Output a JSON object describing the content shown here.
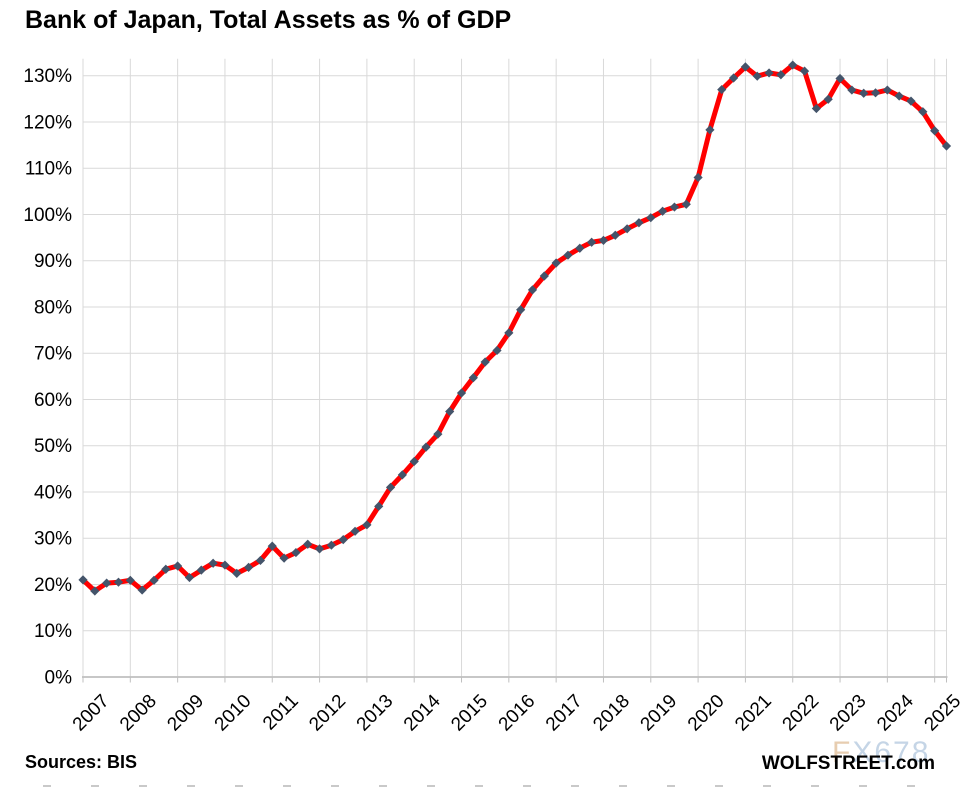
{
  "title": "Bank of Japan, Total Assets as % of GDP",
  "footer": {
    "sources_label": "Sources: BIS",
    "site_label": "WOLFSTREET.com"
  },
  "watermark": {
    "part1": "F",
    "part2": "X678"
  },
  "colors": {
    "line": "#FF0000",
    "marker": "#44546A",
    "gridline": "#D9D9D9",
    "axis": "#BFBFBF",
    "label_text": "#000000",
    "bottom_dashes": "#C9C9C9",
    "watermark_tan": "#E7CDB0",
    "watermark_blue": "#C5D5E6"
  },
  "chart_data": {
    "type": "line",
    "title": "Bank of Japan, Total Assets as % of GDP",
    "frequency": "quarterly",
    "x_start": "2007-Q1",
    "x_end": "2025-Q2",
    "year_labels": [
      "2007",
      "2008",
      "2009",
      "2010",
      "2011",
      "2012",
      "2013",
      "2014",
      "2015",
      "2016",
      "2017",
      "2018",
      "2019",
      "2020",
      "2021",
      "2022",
      "2023",
      "2024",
      "2025"
    ],
    "ylabel": "",
    "xlabel": "",
    "ylim": [
      0,
      130
    ],
    "ytick_step": 10,
    "ytick_suffix": "%",
    "grid": true,
    "legend": false,
    "series": [
      {
        "name": "BoJ total assets as % of GDP",
        "values": [
          21.0,
          18.6,
          20.3,
          20.5,
          20.9,
          18.8,
          20.9,
          23.3,
          24.0,
          21.5,
          23.1,
          24.6,
          24.2,
          22.4,
          23.7,
          25.2,
          28.3,
          25.7,
          26.9,
          28.7,
          27.7,
          28.5,
          29.7,
          31.5,
          32.9,
          36.9,
          41.0,
          43.7,
          46.6,
          49.7,
          52.5,
          57.4,
          61.4,
          64.7,
          68.1,
          70.6,
          74.4,
          79.4,
          83.7,
          86.7,
          89.5,
          91.2,
          92.7,
          94.0,
          94.4,
          95.5,
          96.9,
          98.2,
          99.3,
          100.7,
          101.6,
          102.2,
          108.0,
          118.3,
          127.0,
          129.5,
          131.9,
          129.9,
          130.6,
          130.2,
          132.3,
          131.0,
          122.9,
          124.9,
          129.4,
          126.9,
          126.2,
          126.3,
          126.9,
          125.6,
          124.5,
          122.2,
          118.1,
          114.8
        ]
      }
    ]
  }
}
